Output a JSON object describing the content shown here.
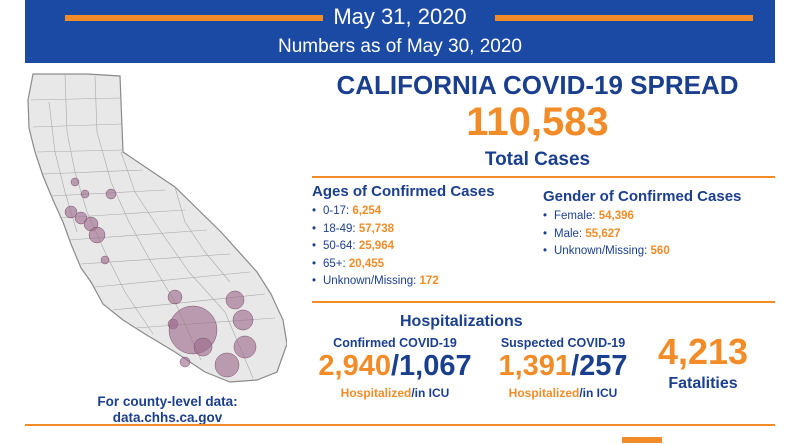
{
  "header": {
    "date": "May 31, 2020",
    "as_of": "Numbers as of May 30, 2020"
  },
  "summary": {
    "title": "CALIFORNIA COVID-19 SPREAD",
    "total_cases": "110,583",
    "total_label": "Total Cases"
  },
  "ages": {
    "title": "Ages of Confirmed Cases",
    "items": [
      {
        "label": "0-17:",
        "value": "6,254"
      },
      {
        "label": "18-49:",
        "value": "57,738"
      },
      {
        "label": "50-64:",
        "value": "25,964"
      },
      {
        "label": "65+:",
        "value": "20,455"
      },
      {
        "label": "Unknown/Missing:",
        "value": "172"
      }
    ]
  },
  "gender": {
    "title": "Gender of Confirmed Cases",
    "items": [
      {
        "label": "Female:",
        "value": "54,396"
      },
      {
        "label": "Male:",
        "value": "55,627"
      },
      {
        "label": "Unknown/Missing:",
        "value": "560"
      }
    ]
  },
  "hospitalizations": {
    "title": "Hospitalizations",
    "confirmed": {
      "heading": "Confirmed COVID-19",
      "hospitalized": "2,940",
      "icu": "1,067"
    },
    "suspected": {
      "heading": "Suspected COVID-19",
      "hospitalized": "1,391",
      "icu": "257"
    },
    "slash": "/",
    "caption_hospitalized": "Hospitalized",
    "caption_icu": "/in ICU"
  },
  "fatalities": {
    "count": "4,213",
    "label": "Fatalities"
  },
  "footer": {
    "county_line1": "For county-level data:",
    "county_line2": "data.chhs.ca.gov"
  },
  "colors": {
    "navy": "#1b3f8f",
    "banner_blue": "#1b4aa5",
    "orange": "#f28c28",
    "bubble": "#9c6b8a"
  },
  "icons": {
    "list_bullet": "•"
  }
}
